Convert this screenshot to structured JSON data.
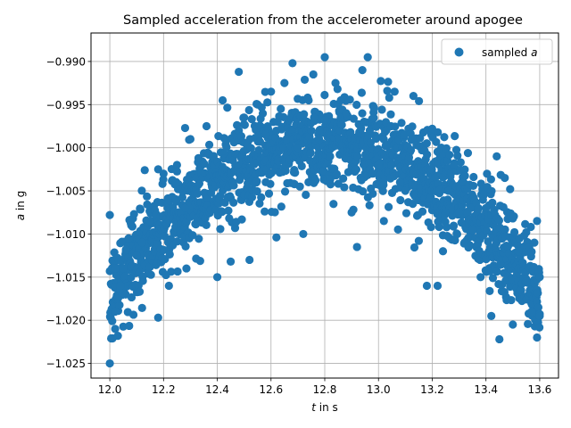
{
  "chart_data": {
    "type": "scatter",
    "title": "Sampled acceleration from the accelerometer around apogee",
    "xlabel_var": "t",
    "xlabel_unit": " in s",
    "ylabel_var": "a",
    "ylabel_unit": " in g",
    "xlim": [
      11.93,
      13.67
    ],
    "ylim": [
      -1.0267,
      -0.9867
    ],
    "xticks": [
      12.0,
      12.2,
      12.4,
      12.6,
      12.8,
      13.0,
      13.2,
      13.4,
      13.6
    ],
    "xtick_labels": [
      "12.0",
      "12.2",
      "12.4",
      "12.6",
      "12.8",
      "13.0",
      "13.2",
      "13.4",
      "13.6"
    ],
    "yticks": [
      -0.99,
      -0.995,
      -1.0,
      -1.005,
      -1.01,
      -1.015,
      -1.02,
      -1.025
    ],
    "ytick_labels": [
      "−0.990",
      "−0.995",
      "−1.000",
      "−1.005",
      "−1.010",
      "−1.015",
      "−1.020",
      "−1.025"
    ],
    "grid": true,
    "legend_position": "top-right",
    "series": [
      {
        "name_prefix": "sampled ",
        "name_var": "a",
        "color": "#1f77b4",
        "model": {
          "peak_t": 12.8,
          "peak_a": -0.9993,
          "curvature": -0.0275
        },
        "points": [
          [
            12.0,
            -1.025
          ],
          [
            12.01,
            -1.0221
          ],
          [
            12.02,
            -1.019
          ],
          [
            12.03,
            -1.0175
          ],
          [
            12.04,
            -1.016
          ],
          [
            12.05,
            -1.014
          ],
          [
            12.06,
            -1.0118
          ],
          [
            12.07,
            -1.0105
          ],
          [
            12.08,
            -1.009
          ],
          [
            12.0,
            -1.0078
          ],
          [
            12.02,
            -1.014
          ],
          [
            12.03,
            -1.0218
          ],
          [
            12.1,
            -1.0125
          ],
          [
            12.12,
            -1.011
          ],
          [
            12.13,
            -1.0026
          ],
          [
            12.15,
            -1.0085
          ],
          [
            12.18,
            -1.0197
          ],
          [
            12.18,
            -1.0025
          ],
          [
            12.2,
            -1.003
          ],
          [
            12.22,
            -1.016
          ],
          [
            12.25,
            -1.002
          ],
          [
            12.28,
            -1.007
          ],
          [
            12.3,
            -0.999
          ],
          [
            12.33,
            -1.0012
          ],
          [
            12.36,
            -0.9975
          ],
          [
            12.4,
            -1.015
          ],
          [
            12.42,
            -0.9945
          ],
          [
            12.45,
            -1.0132
          ],
          [
            12.48,
            -0.9912
          ],
          [
            12.5,
            -0.9965
          ],
          [
            12.52,
            -1.013
          ],
          [
            12.55,
            -0.995
          ],
          [
            12.58,
            -0.9985
          ],
          [
            12.6,
            -0.9935
          ],
          [
            12.62,
            -1.0104
          ],
          [
            12.65,
            -0.9925
          ],
          [
            12.68,
            -0.9902
          ],
          [
            12.7,
            -1.0
          ],
          [
            12.72,
            -1.01
          ],
          [
            12.74,
            -0.9945
          ],
          [
            12.76,
            -0.9965
          ],
          [
            12.78,
            -0.998
          ],
          [
            12.8,
            -0.9968
          ],
          [
            12.8,
            -0.9895
          ],
          [
            12.82,
            -1.001
          ],
          [
            12.84,
            -0.9925
          ],
          [
            12.86,
            -0.9945
          ],
          [
            12.88,
            -0.996
          ],
          [
            12.9,
            -1.0075
          ],
          [
            12.92,
            -1.0115
          ],
          [
            12.94,
            -0.991
          ],
          [
            12.96,
            -0.9895
          ],
          [
            12.98,
            -1.003
          ],
          [
            13.0,
            -1.002
          ],
          [
            13.02,
            -1.0085
          ],
          [
            13.04,
            -0.9942
          ],
          [
            13.06,
            -0.9935
          ],
          [
            13.08,
            -1.004
          ],
          [
            13.1,
            -1.005
          ],
          [
            13.13,
            -0.994
          ],
          [
            13.15,
            -1.0108
          ],
          [
            13.18,
            -1.016
          ],
          [
            13.2,
            -0.9978
          ],
          [
            13.22,
            -1.016
          ],
          [
            13.24,
            -1.012
          ],
          [
            13.26,
            -1.005
          ],
          [
            13.28,
            -1.002
          ],
          [
            13.3,
            -1.0075
          ],
          [
            13.32,
            -1.011
          ],
          [
            13.35,
            -1.0095
          ],
          [
            13.38,
            -1.015
          ],
          [
            13.4,
            -1.007
          ],
          [
            13.42,
            -1.0195
          ],
          [
            13.44,
            -1.001
          ],
          [
            13.45,
            -1.0222
          ],
          [
            13.47,
            -1.0035
          ],
          [
            13.49,
            -1.0048
          ],
          [
            13.5,
            -1.0205
          ],
          [
            13.52,
            -1.012
          ],
          [
            13.55,
            -1.0155
          ],
          [
            13.57,
            -1.019
          ],
          [
            13.58,
            -1.011
          ],
          [
            13.59,
            -1.022
          ],
          [
            13.6,
            -1.0195
          ],
          [
            13.6,
            -1.015
          ],
          [
            13.59,
            -1.0085
          ]
        ]
      }
    ]
  }
}
